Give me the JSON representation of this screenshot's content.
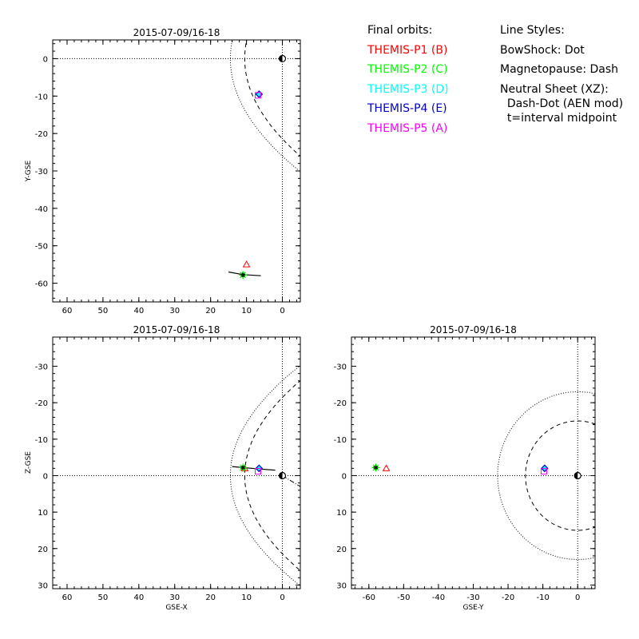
{
  "legend": {
    "orbits_title": "Final orbits:",
    "probes": [
      {
        "label": "THEMIS-P1 (B)",
        "color": "#ff0000",
        "symbol": "triangle"
      },
      {
        "label": "THEMIS-P2 (C)",
        "color": "#00ff00",
        "symbol": "star"
      },
      {
        "label": "THEMIS-P3 (D)",
        "color": "#00ffff",
        "symbol": "diamond"
      },
      {
        "label": "THEMIS-P4 (E)",
        "color": "#0000cc",
        "symbol": "diamond-outline"
      },
      {
        "label": "THEMIS-P5 (A)",
        "color": "#ff00ff",
        "symbol": "square"
      }
    ],
    "styles_title": "Line Styles:",
    "styles": [
      "BowShock: Dot",
      "Magnetopause: Dash",
      "Neutral Sheet (XZ):",
      "  Dash-Dot (AEN mod)",
      "  t=interval midpoint"
    ]
  },
  "chart_data": [
    {
      "type": "scatter",
      "title": "2015-07-09/16-18",
      "xlabel": "",
      "ylabel": "Y-GSE",
      "xlim": [
        64,
        -5
      ],
      "ylim": [
        5,
        -65
      ],
      "xticks": [
        60,
        50,
        40,
        30,
        20,
        10,
        0
      ],
      "yticks": [
        -60,
        -50,
        -40,
        -30,
        -20,
        -10,
        0
      ],
      "trace": {
        "x": [
          15,
          11,
          6
        ],
        "y": [
          -57,
          -57.7,
          -58
        ]
      },
      "points": [
        {
          "probe": "THEMIS-P1 (B)",
          "x": 10,
          "y": -55
        },
        {
          "probe": "THEMIS-P2 (C)",
          "x": 11,
          "y": -57.8
        },
        {
          "probe": "THEMIS-P3 (D)",
          "x": 6.5,
          "y": -9.5
        },
        {
          "probe": "THEMIS-P4 (E)",
          "x": 6.5,
          "y": -9.5
        },
        {
          "probe": "THEMIS-P5 (A)",
          "x": 6.8,
          "y": -9.8
        }
      ],
      "earth": {
        "x": 0,
        "y": 0
      },
      "bowshock": {
        "nose": 14.5,
        "flare": 0.62
      },
      "magnetopause": {
        "nose": 10.5,
        "flare": 0.48
      }
    },
    {
      "type": "scatter",
      "title": "2015-07-09/16-18",
      "xlabel": "GSE-X",
      "ylabel": "Z-GSE",
      "xlim": [
        64,
        -5
      ],
      "ylim": [
        -38,
        31
      ],
      "xticks": [
        60,
        50,
        40,
        30,
        20,
        10,
        0
      ],
      "yticks": [
        -30,
        -20,
        -10,
        0,
        10,
        20,
        30
      ],
      "trace": {
        "x": [
          14,
          11,
          6,
          2
        ],
        "y": [
          -2.5,
          -2.2,
          -1.8,
          -1.5
        ]
      },
      "points": [
        {
          "probe": "THEMIS-P1 (B)",
          "x": 10.5,
          "y": -2
        },
        {
          "probe": "THEMIS-P2 (C)",
          "x": 11,
          "y": -2.2
        },
        {
          "probe": "THEMIS-P3 (D)",
          "x": 6.5,
          "y": -2
        },
        {
          "probe": "THEMIS-P4 (E)",
          "x": 6.5,
          "y": -2
        },
        {
          "probe": "THEMIS-P5 (A)",
          "x": 6.8,
          "y": -1.2
        }
      ],
      "earth": {
        "x": 0,
        "y": 0
      },
      "bowshock": {
        "nose": 14.5,
        "flare": 0.62
      },
      "magnetopause": {
        "nose": 10.5,
        "flare": 0.48
      },
      "neutral_sheet": {
        "x": [
          0,
          -5
        ],
        "y": [
          0,
          3
        ]
      }
    },
    {
      "type": "scatter",
      "title": "2015-07-09/16-18",
      "xlabel": "GSE-Y",
      "ylabel": "",
      "xlim": [
        -65,
        5
      ],
      "ylim": [
        -38,
        31
      ],
      "xticks": [
        -60,
        -50,
        -40,
        -30,
        -20,
        -10,
        0
      ],
      "yticks": [
        -30,
        -20,
        -10,
        0,
        10,
        20,
        30
      ],
      "trace": {
        "x": [
          -58.8,
          -57.6
        ],
        "y": [
          -2.3,
          -2.1
        ]
      },
      "points": [
        {
          "probe": "THEMIS-P1 (B)",
          "x": -55,
          "y": -2
        },
        {
          "probe": "THEMIS-P2 (C)",
          "x": -58,
          "y": -2.2
        },
        {
          "probe": "THEMIS-P3 (D)",
          "x": -9.5,
          "y": -2
        },
        {
          "probe": "THEMIS-P4 (E)",
          "x": -9.5,
          "y": -2
        },
        {
          "probe": "THEMIS-P5 (A)",
          "x": -9.7,
          "y": -1.2
        }
      ],
      "earth": {
        "x": 0,
        "y": 0
      },
      "bowshock_radius": 23,
      "magnetopause_radius": 15
    }
  ]
}
